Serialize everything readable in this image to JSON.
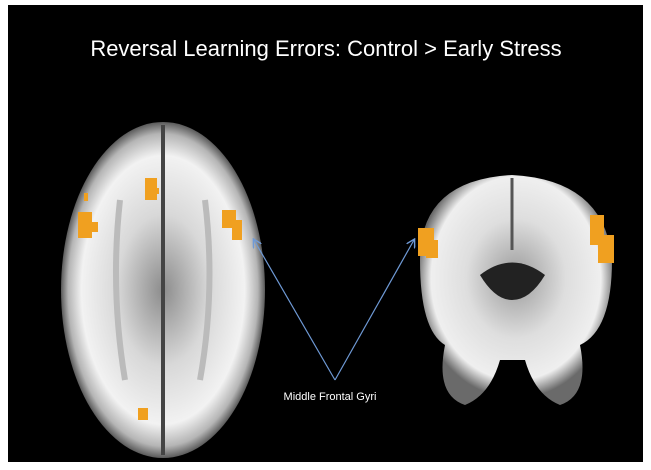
{
  "title": "Reversal Learning Errors: Control > Early Stress",
  "annotation": {
    "label": "Middle Frontal Gyri"
  }
}
